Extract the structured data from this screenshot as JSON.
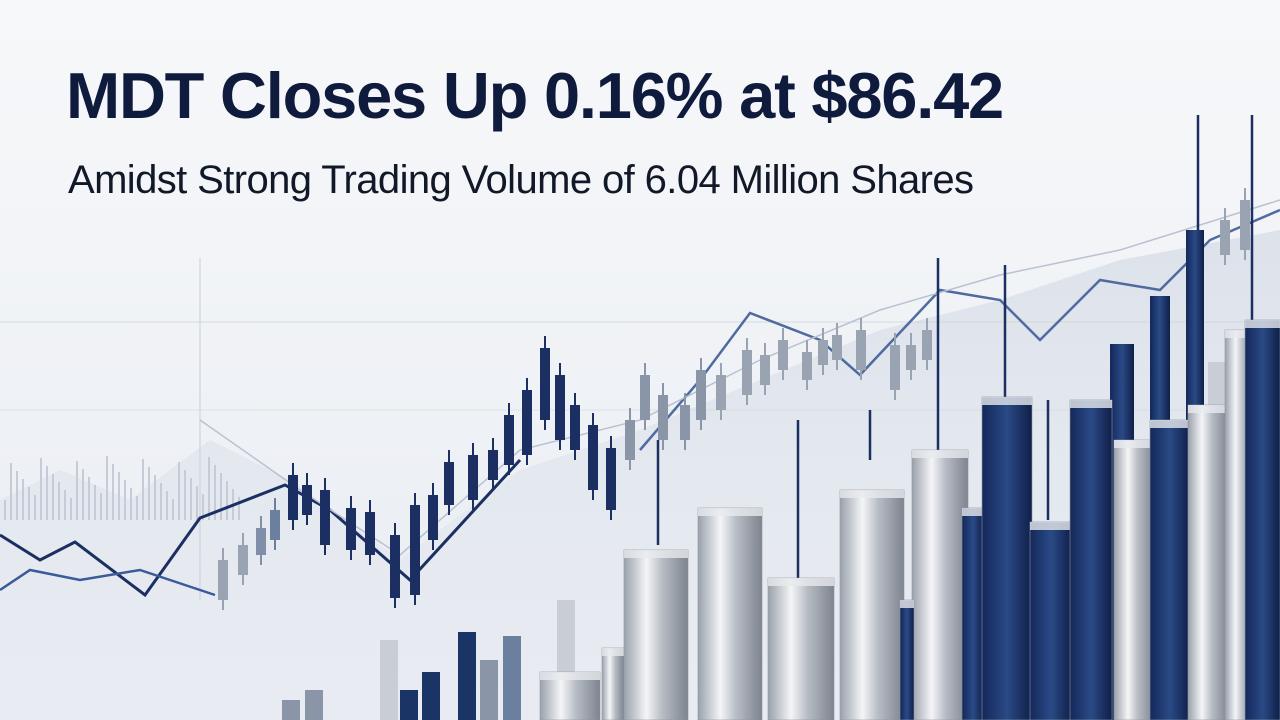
{
  "headline": {
    "title": "MDT Closes Up 0.16% at $86.42",
    "subtitle": "Amidst Strong Trading Volume of 6.04 Million Shares"
  },
  "illustration": {
    "description_icons": [
      "candlestick-chart-icon",
      "bar-chart-icon",
      "line-chart-icon"
    ],
    "colors": {
      "navy": "#1b3466",
      "silver": "#c9ced6",
      "text": "#0f1b3d",
      "background": "#f3f5f8"
    }
  }
}
